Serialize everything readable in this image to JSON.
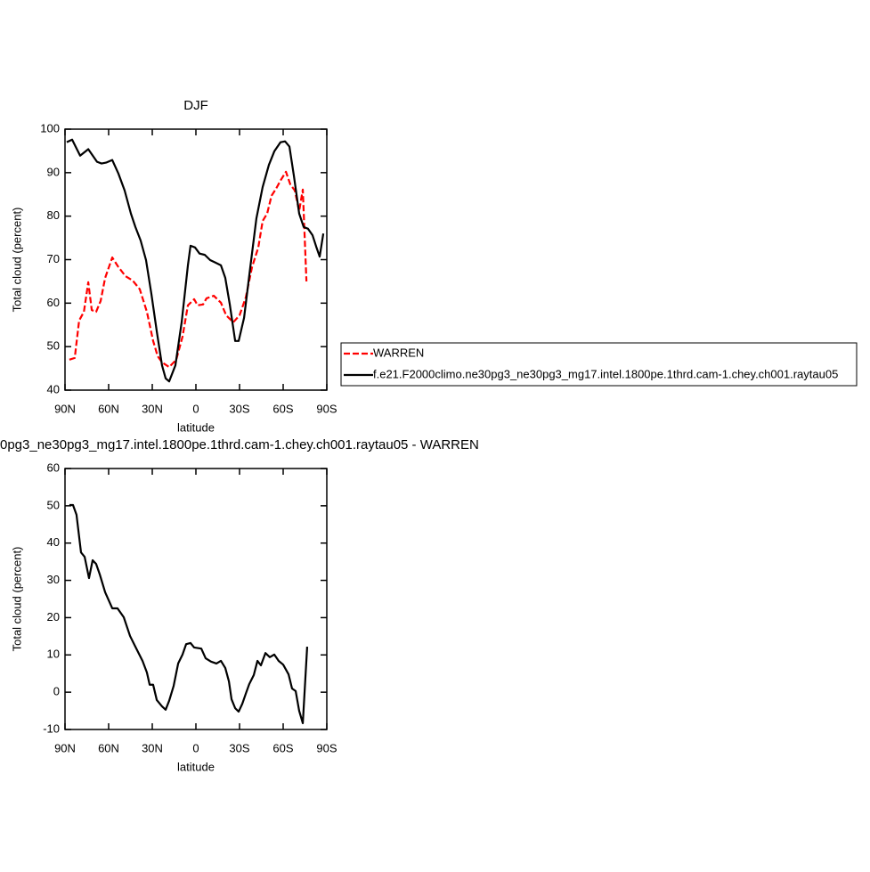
{
  "chart_data": [
    {
      "type": "line",
      "title": "DJF",
      "xlabel": "latitude",
      "ylabel": "Total cloud (percent)",
      "xlim": [
        90,
        -90
      ],
      "xticks": [
        {
          "value": 90,
          "label": "90N"
        },
        {
          "value": 60,
          "label": "60N"
        },
        {
          "value": 30,
          "label": "30N"
        },
        0,
        {
          "value": -30,
          "label": "30S"
        },
        {
          "value": -60,
          "label": "60S"
        },
        {
          "value": -90,
          "label": "90S"
        }
      ],
      "ylim": [
        40,
        100
      ],
      "yticks": [
        40,
        50,
        60,
        70,
        80,
        90,
        100
      ],
      "series": [
        {
          "name": "WARREN",
          "color": "#ff0000",
          "dashed": true,
          "x": [
            87,
            83.3,
            80.3,
            77,
            74,
            71.6,
            68.6,
            65.5,
            62.4,
            57.5,
            53.3,
            48.4,
            43.5,
            38.6,
            33.7,
            29.4,
            26.3,
            23.3,
            18.4,
            13.5,
            9.2,
            5.5,
            1.2,
            -1.2,
            -4.9,
            -7.3,
            -12.3,
            -17.2,
            -20.8,
            -25.7,
            -30,
            -34.3,
            -38.6,
            -42.9,
            -45.9,
            -49,
            -52,
            -55.1,
            -58.2,
            -61.9,
            -64.9,
            -68,
            -71,
            -73.5,
            -76
          ],
          "values": [
            47,
            47.4,
            56,
            58,
            64.8,
            58.4,
            58,
            60.5,
            65.8,
            70.5,
            68.3,
            66.2,
            65.2,
            63.2,
            58,
            51.3,
            47.8,
            46.4,
            45.3,
            47,
            52.3,
            59.5,
            60.9,
            59.5,
            59.7,
            61.1,
            61.7,
            60.1,
            57.2,
            55.6,
            57.2,
            61.3,
            68.3,
            72.8,
            78.9,
            80.6,
            84.7,
            86.3,
            88.2,
            90.2,
            87.3,
            85.9,
            81.2,
            86.1,
            65
          ]
        },
        {
          "name": "f.e21.F2000climo.ne30pg3_ne30pg3_mg17.intel.1800pe.1thrd.cam-1.chey.ch001.raytau05",
          "color": "#000000",
          "dashed": false,
          "x": [
            88.8,
            85.1,
            79.6,
            74,
            68,
            64.9,
            61.8,
            57.5,
            53.3,
            49,
            44.7,
            41.6,
            38,
            34.3,
            30.6,
            26.9,
            23.3,
            20.8,
            18.4,
            14.1,
            9.8,
            5.5,
            3.7,
            0.6,
            -2.5,
            -6.1,
            -9.8,
            -13.5,
            -17.2,
            -20.2,
            -23.3,
            -27,
            -29.4,
            -33.1,
            -37.4,
            -41.6,
            -45.9,
            -50.2,
            -53.9,
            -58.2,
            -61.3,
            -64.3,
            -67.4,
            -71,
            -74.1,
            -77.1,
            -80.2,
            -82.7,
            -85.1,
            -87.6
          ],
          "values": [
            97,
            97.6,
            93.9,
            95.4,
            92.5,
            92.1,
            92.3,
            92.9,
            89.8,
            85.9,
            80.6,
            77.5,
            74.4,
            69.9,
            62.1,
            53.5,
            45.7,
            42.7,
            42,
            45.7,
            55.6,
            68.7,
            73.2,
            72.8,
            71.4,
            71.1,
            69.9,
            69.3,
            68.7,
            65.8,
            59.7,
            51.3,
            51.3,
            56.6,
            68.3,
            79.5,
            86.7,
            91.8,
            94.9,
            97,
            97.2,
            96,
            89.2,
            80.6,
            77.5,
            77.1,
            75.6,
            73,
            70.7,
            76
          ]
        }
      ]
    },
    {
      "type": "line",
      "title": "0pg3_ne30pg3_mg17.intel.1800pe.1thrd.cam-1.chey.ch001.raytau05 - WARREN",
      "xlabel": "latitude",
      "ylabel": "Total cloud (percent)",
      "xlim": [
        90,
        -90
      ],
      "xticks": [
        {
          "value": 90,
          "label": "90N"
        },
        {
          "value": 60,
          "label": "60N"
        },
        {
          "value": 30,
          "label": "30N"
        },
        0,
        {
          "value": -30,
          "label": "30S"
        },
        {
          "value": -60,
          "label": "60S"
        },
        {
          "value": -90,
          "label": "90S"
        }
      ],
      "ylim": [
        -10,
        60
      ],
      "yticks": [
        -10,
        0,
        10,
        20,
        30,
        40,
        50,
        60
      ],
      "color": "#000000",
      "x": [
        87,
        84.5,
        82.1,
        79,
        76.5,
        73.5,
        71,
        68.6,
        66.1,
        62.4,
        57.5,
        53.9,
        49.6,
        45.3,
        41.6,
        36.7,
        33.7,
        31.8,
        29.4,
        26.9,
        23.3,
        20.8,
        18.4,
        15.3,
        12.2,
        9.2,
        6.7,
        3.7,
        1.2,
        -3.7,
        -6.7,
        -10.4,
        -14.1,
        -17.2,
        -20.2,
        -22.7,
        -24.5,
        -27,
        -29.4,
        -31.9,
        -34.3,
        -36.7,
        -39.8,
        -42.3,
        -44.7,
        -47.8,
        -50.8,
        -53.9,
        -56.9,
        -60,
        -63.7,
        -66.1,
        -68.6,
        -71,
        -73.5,
        -76.5
      ],
      "values": [
        50.2,
        50.2,
        47.6,
        37.5,
        36.3,
        30.6,
        35.4,
        34.4,
        31.6,
        26.8,
        22.5,
        22.5,
        20.1,
        15.1,
        12.2,
        8.4,
        5.3,
        2,
        2,
        -2.1,
        -3.8,
        -4.7,
        -2.3,
        1.7,
        7.7,
        10.1,
        12.9,
        13.2,
        12,
        11.7,
        9.1,
        8.2,
        7.7,
        8.4,
        6.5,
        2.9,
        -1.9,
        -4.3,
        -5.2,
        -3.1,
        -0.4,
        2.2,
        4.6,
        8.4,
        7.2,
        10.5,
        9.4,
        10.1,
        8.4,
        7.4,
        4.8,
        1,
        0.3,
        -5,
        -8.3,
        12.2
      ]
    }
  ]
}
